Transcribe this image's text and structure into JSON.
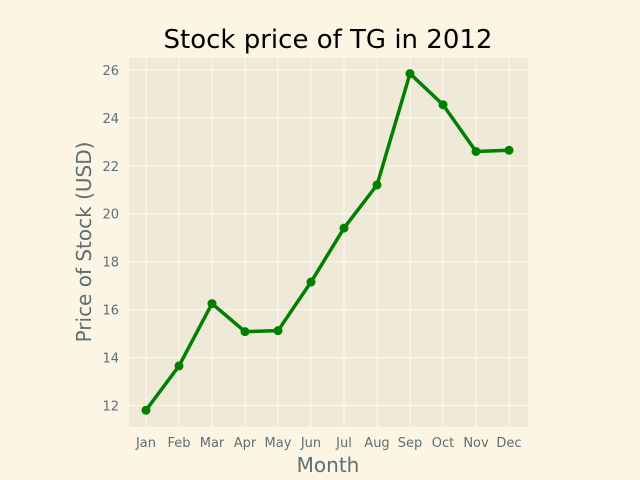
{
  "chart_data": {
    "type": "line",
    "title": "Stock price of TG in 2012",
    "xlabel": "Month",
    "ylabel": "Price of Stock (USD)",
    "categories": [
      "Jan",
      "Feb",
      "Mar",
      "Apr",
      "May",
      "Jun",
      "Jul",
      "Aug",
      "Sep",
      "Oct",
      "Nov",
      "Dec"
    ],
    "series": [
      {
        "values": [
          11.8,
          13.65,
          16.25,
          15.08,
          15.12,
          17.15,
          19.4,
          21.2,
          25.85,
          24.55,
          22.6,
          22.65
        ]
      }
    ],
    "ylim": [
      11.1,
      26.5
    ],
    "yticks": [
      "12",
      "14",
      "16",
      "18",
      "20",
      "22",
      "24",
      "26"
    ],
    "grid": true,
    "legend": "none",
    "colors": {
      "line": "#008000",
      "figure_bg": "#fcf5e4",
      "plot_bg": "#efe9d7",
      "grid": "#fbf9f4",
      "text": "#5e6e73"
    }
  }
}
